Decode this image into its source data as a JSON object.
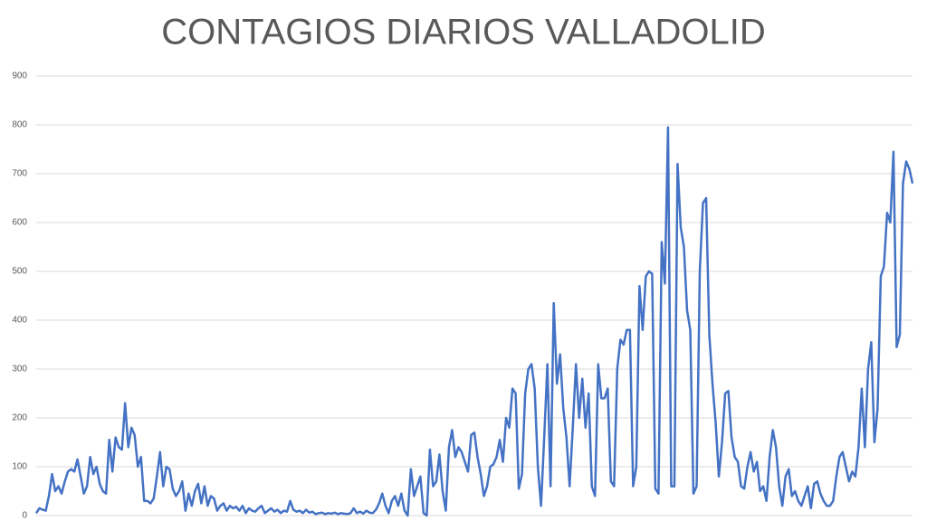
{
  "chart_data": {
    "type": "line",
    "title": "CONTAGIOS DIARIOS VALLADOLID",
    "series": [
      {
        "color": "#4472c4",
        "values": [
          5,
          15,
          12,
          10,
          40,
          85,
          50,
          60,
          45,
          70,
          90,
          95,
          90,
          115,
          80,
          45,
          60,
          120,
          85,
          100,
          65,
          50,
          45,
          155,
          90,
          160,
          140,
          135,
          230,
          140,
          180,
          165,
          100,
          120,
          30,
          30,
          25,
          35,
          80,
          130,
          60,
          100,
          95,
          55,
          40,
          50,
          70,
          10,
          45,
          20,
          50,
          65,
          25,
          60,
          20,
          40,
          35,
          10,
          20,
          25,
          10,
          20,
          15,
          18,
          10,
          20,
          5,
          15,
          10,
          8,
          15,
          20,
          5,
          10,
          15,
          8,
          12,
          5,
          10,
          8,
          30,
          12,
          8,
          10,
          5,
          12,
          6,
          8,
          3,
          5,
          6,
          3,
          5,
          4,
          6,
          3,
          5,
          4,
          3,
          5,
          15,
          5,
          8,
          4,
          10,
          6,
          5,
          12,
          25,
          45,
          20,
          5,
          30,
          40,
          20,
          45,
          10,
          0,
          95,
          40,
          60,
          80,
          5,
          0,
          135,
          60,
          70,
          125,
          50,
          10,
          140,
          175,
          120,
          140,
          130,
          110,
          90,
          165,
          170,
          120,
          85,
          40,
          60,
          100,
          105,
          120,
          155,
          110,
          200,
          180,
          260,
          250,
          55,
          85,
          250,
          300,
          310,
          260,
          100,
          20,
          160,
          310,
          60,
          435,
          270,
          330,
          220,
          160,
          60,
          180,
          310,
          200,
          280,
          180,
          250,
          60,
          40,
          310,
          240,
          240,
          260,
          70,
          60,
          300,
          360,
          350,
          380,
          380,
          60,
          100,
          470,
          380,
          490,
          500,
          495,
          55,
          45,
          560,
          475,
          795,
          60,
          60,
          720,
          590,
          550,
          420,
          380,
          45,
          60,
          500,
          640,
          650,
          370,
          270,
          190,
          80,
          150,
          250,
          255,
          160,
          120,
          110,
          60,
          55,
          100,
          130,
          90,
          110,
          50,
          60,
          30,
          120,
          175,
          140,
          60,
          20,
          80,
          95,
          40,
          50,
          30,
          20,
          40,
          60,
          15,
          65,
          70,
          45,
          30,
          20,
          20,
          30,
          80,
          120,
          130,
          100,
          70,
          90,
          80,
          140,
          260,
          140,
          300,
          355,
          150,
          220,
          490,
          510,
          620,
          600,
          745,
          345,
          370,
          680,
          725,
          710,
          680
        ]
      }
    ],
    "ylim": [
      0,
      900
    ],
    "yticks": [
      0,
      100,
      200,
      300,
      400,
      500,
      600,
      700,
      800,
      900
    ],
    "grid": true
  }
}
